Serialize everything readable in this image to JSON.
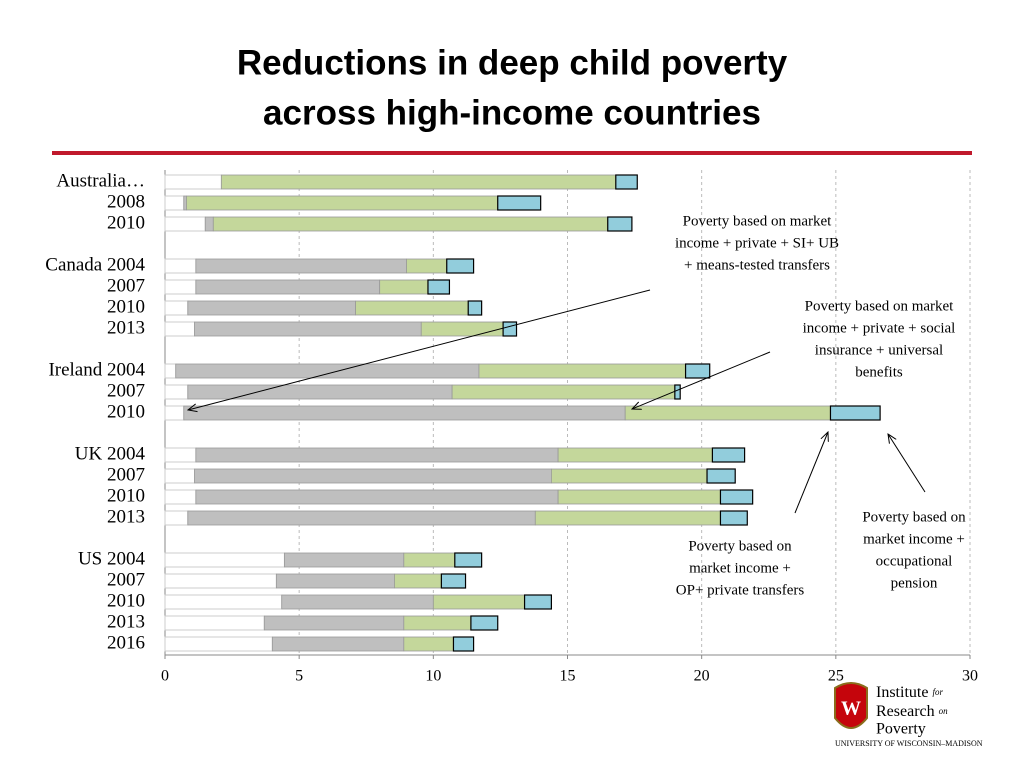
{
  "chart_data": {
    "type": "floating-bar",
    "title": [
      "Reductions in deep child poverty",
      "across high-income countries"
    ],
    "categories": [
      "Australia…",
      "2008",
      "2010",
      "Canada 2004",
      "2007",
      "2010",
      "2013",
      "Ireland 2004",
      "2007",
      "2010",
      "UK 2004",
      "2007",
      "2010",
      "2013",
      "US 2004",
      "2007",
      "2010",
      "2013",
      "2016"
    ],
    "series": [
      {
        "color": "#ffffff",
        "values": [
          2.1,
          0.7,
          1.5,
          1.15,
          1.15,
          0.85,
          1.1,
          0.4,
          0.85,
          0.7,
          1.15,
          1.1,
          1.15,
          0.85,
          4.45,
          4.15,
          4.35,
          3.7,
          4.0
        ]
      },
      {
        "color": "#bfbfbf",
        "values": [
          2.1,
          0.8,
          1.8,
          9.0,
          8.0,
          7.1,
          9.55,
          11.7,
          10.7,
          17.15,
          14.65,
          14.4,
          14.65,
          13.8,
          8.9,
          8.55,
          10.0,
          8.9,
          8.9
        ]
      },
      {
        "color": "#c4d79b",
        "values": [
          16.8,
          12.4,
          16.5,
          10.5,
          9.8,
          11.3,
          12.6,
          19.4,
          19.0,
          24.8,
          20.4,
          20.2,
          20.7,
          20.7,
          10.8,
          10.3,
          13.4,
          11.4,
          10.75
        ]
      },
      {
        "color": "#92cddc",
        "values": [
          17.6,
          14.0,
          17.4,
          11.5,
          10.6,
          11.8,
          13.1,
          20.3,
          19.2,
          26.65,
          21.6,
          21.25,
          21.9,
          21.7,
          11.8,
          11.2,
          14.4,
          12.4,
          11.5
        ]
      }
    ],
    "xlim": [
      0,
      30
    ],
    "xticks": [
      0,
      5,
      10,
      15,
      20,
      25,
      30
    ],
    "grid": true,
    "annotations": [
      {
        "lines": [
          "Poverty based on market",
          "income + private + SI+ UB",
          "+ means-tested transfers"
        ]
      },
      {
        "lines": [
          "Poverty based on market",
          "income + private + social",
          "insurance + universal",
          "benefits"
        ]
      },
      {
        "lines": [
          "Poverty based on",
          "market income +",
          "OP+ private transfers"
        ]
      },
      {
        "lines": [
          "Poverty based on",
          "market income +",
          "occupational",
          "pension"
        ]
      }
    ]
  },
  "logo": {
    "institute": "Institute",
    "for": "for",
    "research": "Research",
    "on": "on",
    "poverty": "Poverty",
    "university": "UNIVERSITY OF WISCONSIN–MADISON"
  }
}
